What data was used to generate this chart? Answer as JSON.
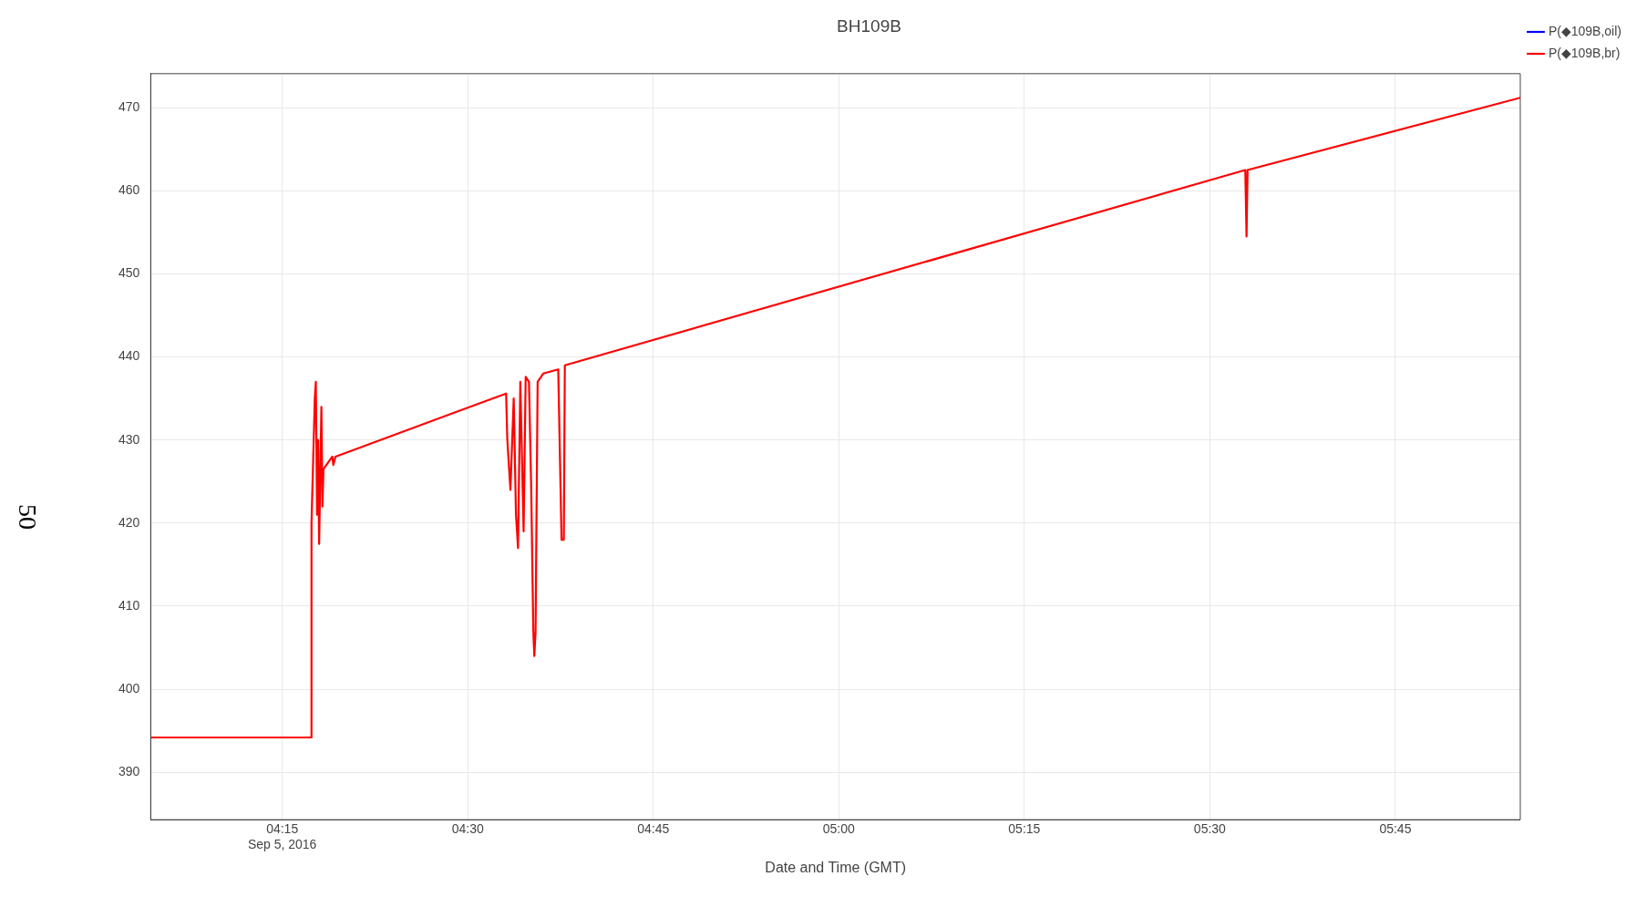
{
  "chart_data": {
    "type": "line",
    "title": "BH109B",
    "xlabel": "Date and Time (GMT)",
    "annotations": [
      "50"
    ],
    "x": [
      "2016-09-05T04:04:22",
      "2016-09-05T04:17:22",
      "2016-09-05T04:17:22",
      "2016-09-05T04:17:38",
      "2016-09-05T04:17:43",
      "2016-09-05T04:17:49",
      "2016-09-05T04:17:54",
      "2016-09-05T04:17:59",
      "2016-09-05T04:18:10",
      "2016-09-05T04:18:15",
      "2016-09-05T04:18:20",
      "2016-09-05T04:19:03",
      "2016-09-05T04:19:08",
      "2016-09-05T04:19:18",
      "2016-09-05T04:33:06",
      "2016-09-05T04:33:12",
      "2016-09-05T04:33:27",
      "2016-09-05T04:33:43",
      "2016-09-05T04:33:54",
      "2016-09-05T04:34:04",
      "2016-09-05T04:34:15",
      "2016-09-05T04:34:31",
      "2016-09-05T04:34:41",
      "2016-09-05T04:34:57",
      "2016-09-05T04:35:08",
      "2016-09-05T04:35:18",
      "2016-09-05T04:35:23",
      "2016-09-05T04:35:29",
      "2016-09-05T04:35:39",
      "2016-09-05T04:36:06",
      "2016-09-05T04:37:19",
      "2016-09-05T04:37:35",
      "2016-09-05T04:37:46",
      "2016-09-05T04:37:51",
      "2016-09-05T05:32:52",
      "2016-09-05T05:32:58",
      "2016-09-05T05:33:03",
      "2016-09-05T05:55:06"
    ],
    "series": [
      {
        "name": "P(◆109B,oil)",
        "color": "#0000ff",
        "values": [
          null,
          null,
          null,
          null,
          null,
          null,
          null,
          null,
          null,
          null,
          null,
          null,
          null,
          null,
          null,
          null,
          null,
          null,
          null,
          null,
          null,
          null,
          null,
          null,
          null,
          null,
          null,
          null,
          null,
          null,
          null,
          null,
          null,
          null,
          null,
          null,
          null,
          null
        ]
      },
      {
        "name": "P(◆109B,br)",
        "color": "#ff0000",
        "values": [
          394.2,
          394.2,
          420,
          435,
          437,
          421,
          430,
          417.5,
          434,
          422,
          426.5,
          428,
          427,
          428,
          435.6,
          430,
          424,
          435,
          421,
          417,
          437,
          419,
          437.6,
          437,
          424,
          407,
          404,
          407,
          437,
          438,
          438.5,
          418,
          418,
          439,
          462.5,
          454.5,
          462.5,
          471.2
        ]
      }
    ],
    "xlim": [
      "2016-09-05T04:04:22",
      "2016-09-05T05:55:06"
    ],
    "xticks": [
      {
        "value": "2016-09-05T04:15",
        "label": "04:15\nSep 5, 2016"
      },
      {
        "value": "2016-09-05T04:30",
        "label": "04:30"
      },
      {
        "value": "2016-09-05T04:45",
        "label": "04:45"
      },
      {
        "value": "2016-09-05T05:00",
        "label": "05:00"
      },
      {
        "value": "2016-09-05T05:15",
        "label": "05:15"
      },
      {
        "value": "2016-09-05T05:30",
        "label": "05:30"
      },
      {
        "value": "2016-09-05T05:45",
        "label": "05:45"
      }
    ],
    "ylim": [
      384.3,
      474.1
    ],
    "yticks": [
      390,
      400,
      410,
      420,
      430,
      440,
      450,
      460,
      470
    ],
    "grid": true,
    "legend": "top right",
    "line_style": "solid",
    "marker": "none"
  }
}
